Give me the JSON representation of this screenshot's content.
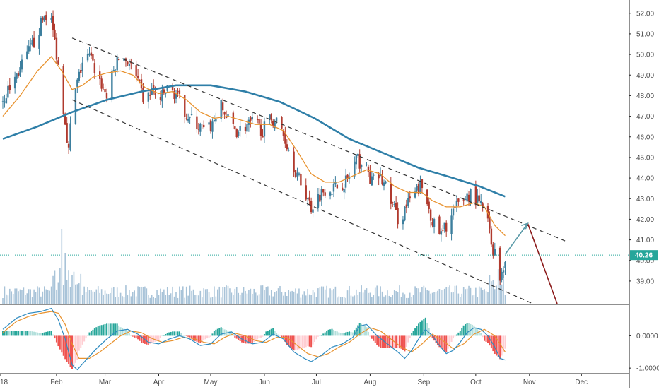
{
  "chart_data": [
    {
      "type": "candlestick",
      "title": "",
      "x_ticks": [
        {
          "label": "18",
          "day": 0
        },
        {
          "label": "Feb",
          "day": 31
        },
        {
          "label": "Mar",
          "day": 59
        },
        {
          "label": "Apr",
          "day": 90
        },
        {
          "label": "May",
          "day": 120
        },
        {
          "label": "Jun",
          "day": 151
        },
        {
          "label": "Jul",
          "day": 181
        },
        {
          "label": "Aug",
          "day": 212
        },
        {
          "label": "Sep",
          "day": 243
        },
        {
          "label": "Oct",
          "day": 273
        },
        {
          "label": "Nov",
          "day": 304
        },
        {
          "label": "Dec",
          "day": 334
        }
      ],
      "y_ticks": [
        "52.00",
        "51.00",
        "50.00",
        "49.00",
        "48.00",
        "47.00",
        "46.00",
        "45.00",
        "44.00",
        "43.00",
        "42.00",
        "41.00",
        "40.00",
        "39.00"
      ],
      "ylim": [
        37.9,
        52.3
      ],
      "last_price": {
        "value": 40.26,
        "label": "40.26",
        "color": "#26a69a"
      },
      "candle_colors": {
        "up": "#3d7f9e",
        "down": "#b03a2e"
      },
      "price_path": [
        [
          0,
          47.8
        ],
        [
          10,
          49.3
        ],
        [
          18,
          50.6
        ],
        [
          24,
          51.9
        ],
        [
          27,
          52.1
        ],
        [
          30,
          50.6
        ],
        [
          32,
          49.5
        ],
        [
          34,
          48.0
        ],
        [
          36,
          46.8
        ],
        [
          38,
          45.3
        ],
        [
          40,
          47.6
        ],
        [
          43,
          48.6
        ],
        [
          46,
          49.6
        ],
        [
          50,
          49.9
        ],
        [
          55,
          48.9
        ],
        [
          60,
          48.0
        ],
        [
          64,
          49.2
        ],
        [
          68,
          50.0
        ],
        [
          73,
          49.6
        ],
        [
          78,
          48.6
        ],
        [
          82,
          47.6
        ],
        [
          86,
          48.3
        ],
        [
          90,
          47.7
        ],
        [
          95,
          48.3
        ],
        [
          100,
          48.1
        ],
        [
          104,
          47.4
        ],
        [
          108,
          46.9
        ],
        [
          112,
          46.6
        ],
        [
          117,
          46.2
        ],
        [
          121,
          46.6
        ],
        [
          125,
          47.6
        ],
        [
          130,
          46.8
        ],
        [
          135,
          46.3
        ],
        [
          140,
          46.5
        ],
        [
          145,
          46.7
        ],
        [
          150,
          46.3
        ],
        [
          155,
          46.9
        ],
        [
          160,
          46.6
        ],
        [
          165,
          45.4
        ],
        [
          170,
          44.1
        ],
        [
          175,
          43.2
        ],
        [
          178,
          42.6
        ],
        [
          182,
          43.1
        ],
        [
          187,
          43.6
        ],
        [
          191,
          43.5
        ],
        [
          195,
          43.7
        ],
        [
          199,
          43.9
        ],
        [
          204,
          44.9
        ],
        [
          209,
          44.6
        ],
        [
          213,
          43.8
        ],
        [
          217,
          44.1
        ],
        [
          221,
          43.6
        ],
        [
          225,
          42.7
        ],
        [
          229,
          41.8
        ],
        [
          232,
          42.5
        ],
        [
          236,
          43.0
        ],
        [
          241,
          43.6
        ],
        [
          245,
          42.8
        ],
        [
          249,
          41.7
        ],
        [
          253,
          41.2
        ],
        [
          257,
          41.9
        ],
        [
          262,
          42.6
        ],
        [
          267,
          43.1
        ],
        [
          271,
          43.3
        ],
        [
          275,
          42.7
        ],
        [
          279,
          42.4
        ],
        [
          282,
          40.8
        ],
        [
          285,
          40.1
        ],
        [
          287,
          39.2
        ],
        [
          289,
          39.8
        ],
        [
          290,
          40.2
        ]
      ],
      "sma_short": [
        [
          0,
          47.0
        ],
        [
          10,
          48.0
        ],
        [
          20,
          49.2
        ],
        [
          28,
          49.9
        ],
        [
          34,
          49.2
        ],
        [
          40,
          48.3
        ],
        [
          46,
          48.5
        ],
        [
          52,
          48.9
        ],
        [
          60,
          49.1
        ],
        [
          68,
          49.2
        ],
        [
          75,
          49.0
        ],
        [
          82,
          48.4
        ],
        [
          90,
          48.1
        ],
        [
          98,
          48.2
        ],
        [
          106,
          47.8
        ],
        [
          114,
          47.2
        ],
        [
          122,
          46.9
        ],
        [
          130,
          47.0
        ],
        [
          138,
          46.8
        ],
        [
          146,
          46.6
        ],
        [
          154,
          46.6
        ],
        [
          162,
          46.3
        ],
        [
          170,
          45.3
        ],
        [
          178,
          44.2
        ],
        [
          186,
          43.8
        ],
        [
          194,
          43.8
        ],
        [
          202,
          44.1
        ],
        [
          210,
          44.4
        ],
        [
          218,
          44.2
        ],
        [
          226,
          43.6
        ],
        [
          234,
          43.3
        ],
        [
          242,
          43.3
        ],
        [
          248,
          42.9
        ],
        [
          256,
          42.6
        ],
        [
          264,
          42.6
        ],
        [
          272,
          42.8
        ],
        [
          278,
          42.6
        ],
        [
          284,
          41.7
        ],
        [
          290,
          41.2
        ]
      ],
      "sma_long": [
        [
          0,
          45.9
        ],
        [
          20,
          46.5
        ],
        [
          40,
          47.2
        ],
        [
          60,
          47.8
        ],
        [
          80,
          48.2
        ],
        [
          100,
          48.5
        ],
        [
          120,
          48.5
        ],
        [
          140,
          48.2
        ],
        [
          160,
          47.7
        ],
        [
          180,
          46.9
        ],
        [
          200,
          45.9
        ],
        [
          220,
          45.2
        ],
        [
          240,
          44.5
        ],
        [
          260,
          44.0
        ],
        [
          275,
          43.6
        ],
        [
          290,
          43.1
        ]
      ],
      "channel_lines": [
        {
          "name": "upper",
          "from": [
            40,
            50.8
          ],
          "to": [
            326,
            40.9
          ]
        },
        {
          "name": "lower",
          "from": [
            40,
            47.8
          ],
          "to": [
            306,
            37.9
          ]
        }
      ],
      "projection": [
        {
          "name": "projected-rise",
          "from": [
            290,
            40.3
          ],
          "to": [
            303,
            41.8
          ],
          "color": "#5a9aa8"
        },
        {
          "name": "projected-drop",
          "from": [
            303,
            41.8
          ],
          "to": [
            320,
            37.9
          ],
          "color": "#8b1a1a"
        }
      ],
      "volume": {
        "max_day": 34,
        "color": "#a8c3d8"
      },
      "macd": {
        "y_ticks": [
          "0.0000",
          "-1.0000"
        ],
        "ylim": [
          -1.15,
          0.95
        ],
        "macd_line": [
          [
            0,
            0.2
          ],
          [
            8,
            0.55
          ],
          [
            15,
            0.7
          ],
          [
            22,
            0.75
          ],
          [
            28,
            0.85
          ],
          [
            32,
            0.5
          ],
          [
            36,
            -0.1
          ],
          [
            40,
            -0.9
          ],
          [
            43,
            -1.05
          ],
          [
            48,
            -0.75
          ],
          [
            54,
            -0.4
          ],
          [
            60,
            -0.1
          ],
          [
            66,
            0.15
          ],
          [
            72,
            0.2
          ],
          [
            78,
            0.05
          ],
          [
            84,
            -0.2
          ],
          [
            90,
            -0.25
          ],
          [
            96,
            -0.1
          ],
          [
            102,
            0.0
          ],
          [
            108,
            -0.1
          ],
          [
            114,
            -0.3
          ],
          [
            120,
            -0.25
          ],
          [
            126,
            0.05
          ],
          [
            132,
            0.12
          ],
          [
            138,
            -0.1
          ],
          [
            144,
            -0.25
          ],
          [
            150,
            -0.2
          ],
          [
            156,
            0.05
          ],
          [
            162,
            -0.1
          ],
          [
            168,
            -0.5
          ],
          [
            174,
            -0.7
          ],
          [
            178,
            -0.8
          ],
          [
            184,
            -0.6
          ],
          [
            190,
            -0.35
          ],
          [
            196,
            -0.25
          ],
          [
            202,
            -0.05
          ],
          [
            206,
            0.3
          ],
          [
            210,
            0.35
          ],
          [
            216,
            0.0
          ],
          [
            222,
            -0.25
          ],
          [
            228,
            -0.5
          ],
          [
            232,
            -0.7
          ],
          [
            236,
            -0.45
          ],
          [
            240,
            -0.1
          ],
          [
            244,
            0.2
          ],
          [
            248,
            0.0
          ],
          [
            252,
            -0.3
          ],
          [
            256,
            -0.55
          ],
          [
            260,
            -0.45
          ],
          [
            264,
            -0.2
          ],
          [
            268,
            0.1
          ],
          [
            272,
            0.25
          ],
          [
            276,
            0.2
          ],
          [
            280,
            0.0
          ],
          [
            284,
            -0.35
          ],
          [
            287,
            -0.7
          ],
          [
            290,
            -0.75
          ]
        ],
        "signal_line": [
          [
            0,
            0.1
          ],
          [
            8,
            0.45
          ],
          [
            15,
            0.6
          ],
          [
            22,
            0.7
          ],
          [
            28,
            0.75
          ],
          [
            32,
            0.7
          ],
          [
            36,
            0.35
          ],
          [
            40,
            -0.25
          ],
          [
            44,
            -0.7
          ],
          [
            50,
            -0.7
          ],
          [
            56,
            -0.5
          ],
          [
            62,
            -0.25
          ],
          [
            68,
            0.0
          ],
          [
            74,
            0.15
          ],
          [
            80,
            0.1
          ],
          [
            86,
            -0.08
          ],
          [
            92,
            -0.2
          ],
          [
            98,
            -0.15
          ],
          [
            104,
            -0.05
          ],
          [
            110,
            -0.08
          ],
          [
            116,
            -0.2
          ],
          [
            122,
            -0.25
          ],
          [
            128,
            -0.05
          ],
          [
            134,
            0.08
          ],
          [
            140,
            0.0
          ],
          [
            146,
            -0.15
          ],
          [
            152,
            -0.2
          ],
          [
            158,
            -0.05
          ],
          [
            164,
            -0.05
          ],
          [
            170,
            -0.3
          ],
          [
            176,
            -0.55
          ],
          [
            182,
            -0.65
          ],
          [
            188,
            -0.55
          ],
          [
            194,
            -0.35
          ],
          [
            200,
            -0.2
          ],
          [
            206,
            0.05
          ],
          [
            212,
            0.25
          ],
          [
            218,
            0.15
          ],
          [
            224,
            -0.1
          ],
          [
            230,
            -0.35
          ],
          [
            236,
            -0.5
          ],
          [
            242,
            -0.25
          ],
          [
            248,
            0.05
          ],
          [
            254,
            -0.15
          ],
          [
            260,
            -0.4
          ],
          [
            266,
            -0.25
          ],
          [
            272,
            0.05
          ],
          [
            278,
            0.2
          ],
          [
            284,
            0.0
          ],
          [
            290,
            -0.5
          ]
        ],
        "macd_color": "#2e8bc0",
        "signal_color": "#e8922e",
        "hist_up_color": "#26a69a",
        "hist_down_color": "#ef5350",
        "hist_light_up_color": "#b2dfdb",
        "hist_light_down_color": "#ffcdd2"
      },
      "colors": {
        "sma_short": "#e8922e",
        "sma_long": "#2f7fa8",
        "channel": "#333333",
        "price_line": "#26a69a",
        "axis": "#333333"
      }
    }
  ]
}
